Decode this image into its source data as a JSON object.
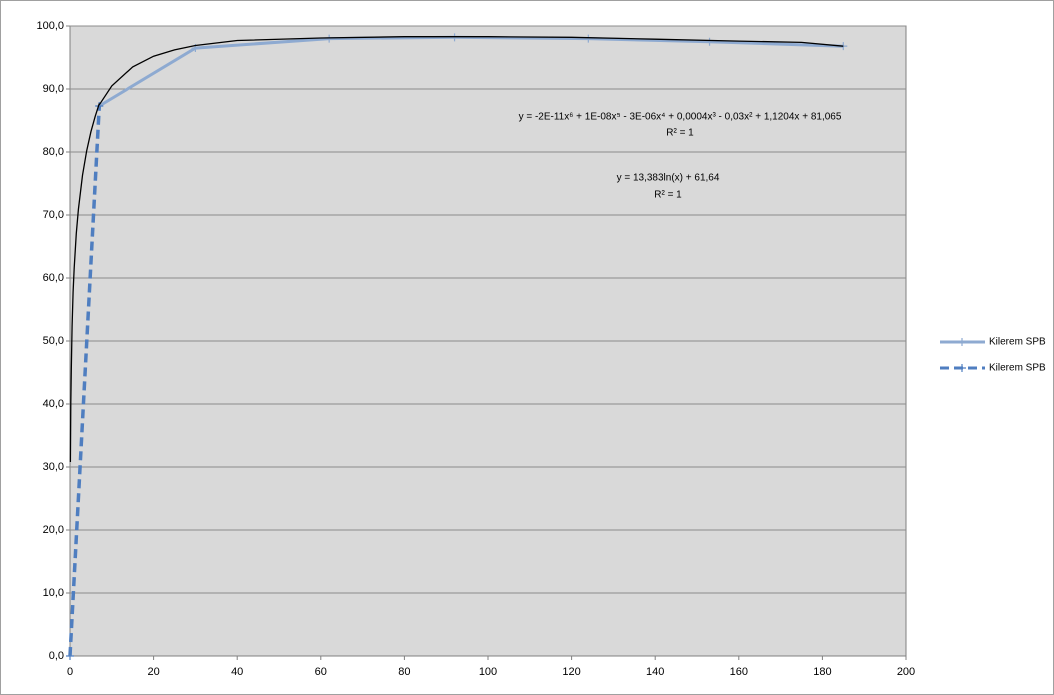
{
  "chart_data": {
    "type": "line",
    "xlim": [
      0,
      200
    ],
    "xticks": [
      0,
      20,
      40,
      60,
      80,
      100,
      120,
      140,
      160,
      180,
      200
    ],
    "ylim": [
      0,
      100
    ],
    "yticks": [
      {
        "value": 0,
        "label": "0,0"
      },
      {
        "value": 10,
        "label": "10,0"
      },
      {
        "value": 20,
        "label": "20,0"
      },
      {
        "value": 30,
        "label": "30,0"
      },
      {
        "value": 40,
        "label": "40,0"
      },
      {
        "value": 50,
        "label": "50,0"
      },
      {
        "value": 60,
        "label": "60,0"
      },
      {
        "value": 70,
        "label": "70,0"
      },
      {
        "value": 80,
        "label": "80,0"
      },
      {
        "value": 90,
        "label": "90,0"
      },
      {
        "value": 100,
        "label": "100,0"
      }
    ],
    "grid": true,
    "legend": "right",
    "series": [
      {
        "name": "Kilerem SPB",
        "color": "#8eaad1",
        "dash": false,
        "x": [
          7,
          30,
          62,
          92,
          124,
          153,
          185
        ],
        "values": [
          87.3,
          96.5,
          98.0,
          98.2,
          98.0,
          97.5,
          96.8
        ]
      },
      {
        "name": "Kilerem SPB",
        "color": "#4f7ec0",
        "dash": true,
        "x": [
          0,
          7
        ],
        "values": [
          0,
          87.3
        ]
      }
    ],
    "trendlines": [
      {
        "color": "#000000",
        "x": [
          0.1,
          0.2,
          0.3,
          0.5,
          0.75,
          1,
          1.5,
          2,
          3,
          4,
          5,
          6,
          7
        ],
        "values": [
          30.8,
          40.1,
          45.5,
          52.4,
          57.8,
          61.6,
          67.1,
          70.9,
          76.3,
          80.2,
          83.2,
          85.6,
          87.7
        ]
      },
      {
        "color": "#000000",
        "x": [
          7,
          10,
          15,
          20,
          25,
          30,
          40,
          60,
          80,
          100,
          120,
          140,
          160,
          175,
          185
        ],
        "values": [
          87.5,
          90.5,
          93.5,
          95.2,
          96.2,
          96.9,
          97.7,
          98.1,
          98.3,
          98.3,
          98.2,
          97.9,
          97.6,
          97.4,
          96.8
        ]
      }
    ],
    "annotations": [
      "y = -2E-11x⁶ + 1E-08x⁵ - 3E-06x⁴ + 0,0004x³ - 0,03x² + 1,1204x + 81,065",
      "R² = 1",
      "y = 13,383ln(x) + 61,64",
      "R² = 1"
    ]
  }
}
